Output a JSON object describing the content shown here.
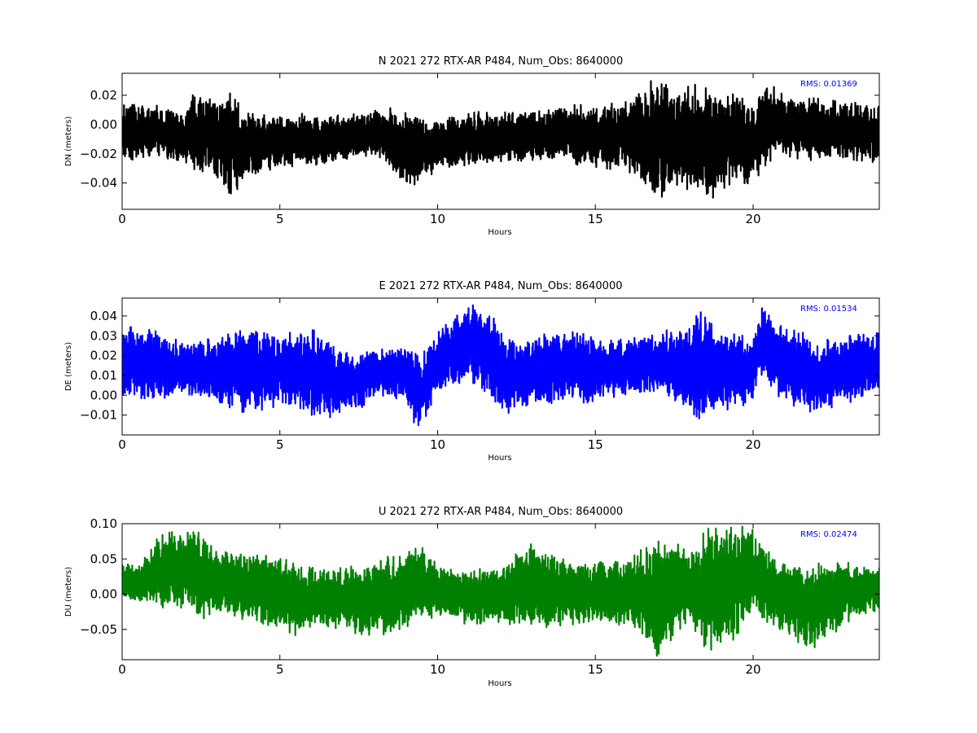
{
  "chart_data": [
    {
      "type": "line",
      "title": "N 2021 272 RTX-AR  P484, Num_Obs: 8640000",
      "xlabel": "Hours",
      "ylabel": "DN (meters)",
      "xlim": [
        0,
        24
      ],
      "ylim": [
        -0.058,
        0.035
      ],
      "xticks": [
        0,
        5,
        10,
        15,
        20
      ],
      "yticks": [
        -0.04,
        -0.02,
        0.0,
        0.02
      ],
      "ytick_labels": [
        "−0.04",
        "−0.02",
        "0.00",
        "0.02"
      ],
      "color": "#000000",
      "grid": false,
      "annotation": "RMS:  0.01369",
      "envelope": {
        "hours": [
          0,
          1,
          2,
          2.3,
          3,
          3.4,
          4,
          5,
          6,
          7,
          8,
          8.5,
          9,
          9.5,
          10,
          11,
          12,
          13,
          14,
          15,
          16,
          16.9,
          17.5,
          18,
          18.6,
          19,
          20,
          20.5,
          21,
          22,
          23,
          24
        ],
        "upper": [
          0.015,
          0.014,
          0.008,
          0.024,
          0.018,
          0.022,
          0.01,
          0.008,
          0.008,
          0.006,
          0.01,
          0.012,
          0.008,
          0.008,
          0.005,
          0.008,
          0.01,
          0.012,
          0.014,
          0.014,
          0.016,
          0.033,
          0.024,
          0.028,
          0.026,
          0.024,
          0.015,
          0.03,
          0.02,
          0.018,
          0.016,
          0.016
        ],
        "lower": [
          -0.026,
          -0.022,
          -0.026,
          -0.032,
          -0.036,
          -0.05,
          -0.036,
          -0.03,
          -0.028,
          -0.026,
          -0.02,
          -0.03,
          -0.044,
          -0.04,
          -0.032,
          -0.028,
          -0.028,
          -0.026,
          -0.026,
          -0.03,
          -0.032,
          -0.054,
          -0.042,
          -0.046,
          -0.055,
          -0.044,
          -0.04,
          -0.026,
          -0.024,
          -0.026,
          -0.026,
          -0.026
        ]
      }
    },
    {
      "type": "line",
      "title": "E 2021 272 RTX-AR  P484, Num_Obs: 8640000",
      "xlabel": "Hours",
      "ylabel": "DE (meters)",
      "xlim": [
        0,
        24
      ],
      "ylim": [
        -0.02,
        0.049
      ],
      "xticks": [
        0,
        5,
        10,
        15,
        20
      ],
      "yticks": [
        -0.01,
        0.0,
        0.01,
        0.02,
        0.03,
        0.04
      ],
      "ytick_labels": [
        "−0.01",
        "0.00",
        "0.01",
        "0.02",
        "0.03",
        "0.04"
      ],
      "color": "#0000ff",
      "grid": false,
      "annotation": "RMS:  0.01534",
      "envelope": {
        "hours": [
          0,
          1,
          2,
          3,
          4,
          4.5,
          5,
          5.8,
          6.5,
          7.5,
          8,
          9,
          9.4,
          10,
          11,
          11.5,
          12,
          12.5,
          13,
          14,
          15,
          16,
          17,
          18,
          18.3,
          19,
          20,
          20.3,
          21,
          22,
          23,
          24
        ],
        "upper": [
          0.035,
          0.034,
          0.026,
          0.03,
          0.034,
          0.036,
          0.03,
          0.035,
          0.03,
          0.02,
          0.024,
          0.026,
          0.02,
          0.032,
          0.047,
          0.044,
          0.036,
          0.028,
          0.03,
          0.034,
          0.03,
          0.028,
          0.032,
          0.036,
          0.044,
          0.032,
          0.03,
          0.046,
          0.034,
          0.03,
          0.03,
          0.032
        ],
        "lower": [
          -0.002,
          -0.004,
          0.0,
          -0.004,
          -0.01,
          -0.008,
          -0.006,
          -0.01,
          -0.012,
          -0.008,
          0.0,
          -0.004,
          -0.02,
          0.0,
          0.006,
          0.002,
          -0.01,
          -0.008,
          -0.006,
          -0.004,
          -0.004,
          0.0,
          0.002,
          -0.01,
          -0.014,
          -0.01,
          -0.004,
          0.008,
          -0.004,
          -0.01,
          -0.004,
          0.002
        ]
      }
    },
    {
      "type": "line",
      "title": "U 2021 272 RTX-AR  P484, Num_Obs: 8640000",
      "xlabel": "Hours",
      "ylabel": "DU (meters)",
      "xlim": [
        0,
        24
      ],
      "ylim": [
        -0.093,
        0.1
      ],
      "xticks": [
        0,
        5,
        10,
        15,
        20
      ],
      "yticks": [
        -0.05,
        0.0,
        0.05,
        0.1
      ],
      "ytick_labels": [
        "−0.05",
        "0.00",
        "0.05",
        "0.10"
      ],
      "color": "#008000",
      "grid": false,
      "annotation": "RMS:  0.02474",
      "envelope": {
        "hours": [
          0,
          0.5,
          1,
          1.5,
          2,
          2.3,
          3,
          4,
          5,
          5.5,
          6,
          7,
          8,
          9,
          9.5,
          10,
          11,
          12,
          13,
          14,
          15,
          16,
          16.9,
          17.5,
          18,
          18.5,
          19,
          20,
          20.5,
          21,
          22,
          23,
          24
        ],
        "upper": [
          0.05,
          0.04,
          0.08,
          0.09,
          0.085,
          0.1,
          0.07,
          0.06,
          0.055,
          0.045,
          0.04,
          0.04,
          0.05,
          0.06,
          0.075,
          0.04,
          0.035,
          0.04,
          0.075,
          0.05,
          0.045,
          0.05,
          0.08,
          0.075,
          0.06,
          0.095,
          0.1,
          0.1,
          0.06,
          0.05,
          0.045,
          0.045,
          0.045
        ],
        "lower": [
          -0.005,
          -0.01,
          -0.02,
          -0.02,
          -0.02,
          -0.04,
          -0.03,
          -0.04,
          -0.05,
          -0.06,
          -0.05,
          -0.05,
          -0.065,
          -0.05,
          -0.04,
          -0.03,
          -0.045,
          -0.04,
          -0.05,
          -0.045,
          -0.04,
          -0.045,
          -0.093,
          -0.06,
          -0.04,
          -0.08,
          -0.08,
          -0.04,
          -0.04,
          -0.06,
          -0.08,
          -0.04,
          -0.03
        ]
      }
    }
  ]
}
